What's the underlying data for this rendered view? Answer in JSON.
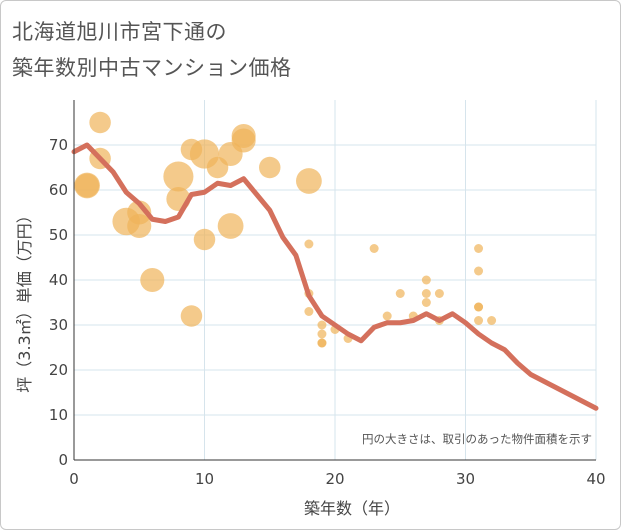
{
  "chart_data": {
    "type": "scatter",
    "title_line1": "北海道旭川市宮下通の",
    "title_line2": "築年数別中古マンション価格",
    "xlabel": "築年数（年）",
    "ylabel": "坪（3.3㎡）単価（万円）",
    "note": "円の大きさは、取引のあった物件面積を示す",
    "xlim": [
      0,
      40
    ],
    "ylim": [
      0,
      80
    ],
    "xticks": [
      0,
      10,
      20,
      30,
      40
    ],
    "yticks": [
      0,
      10,
      20,
      30,
      40,
      50,
      60,
      70
    ],
    "grid": true,
    "colors": {
      "bubble": "#f0b45a",
      "line": "#d4705c",
      "grid": "#d6e4ec",
      "axis": "#333333"
    },
    "bubbles": [
      {
        "x": 1,
        "y": 61,
        "s": 3
      },
      {
        "x": 1,
        "y": 61,
        "s": 2.8
      },
      {
        "x": 2,
        "y": 75,
        "s": 2.5
      },
      {
        "x": 2,
        "y": 67,
        "s": 2.5
      },
      {
        "x": 4,
        "y": 53,
        "s": 3.2
      },
      {
        "x": 5,
        "y": 55,
        "s": 2.8
      },
      {
        "x": 5,
        "y": 52,
        "s": 2.8
      },
      {
        "x": 6,
        "y": 40,
        "s": 2.8
      },
      {
        "x": 8,
        "y": 63,
        "s": 3.5
      },
      {
        "x": 8,
        "y": 58,
        "s": 2.8
      },
      {
        "x": 9,
        "y": 69,
        "s": 2.5
      },
      {
        "x": 9,
        "y": 32,
        "s": 2.5
      },
      {
        "x": 10,
        "y": 68,
        "s": 3.4
      },
      {
        "x": 10,
        "y": 49,
        "s": 2.5
      },
      {
        "x": 11,
        "y": 65,
        "s": 2.5
      },
      {
        "x": 12,
        "y": 68,
        "s": 2.8
      },
      {
        "x": 12,
        "y": 52,
        "s": 3.0
      },
      {
        "x": 13,
        "y": 72,
        "s": 2.8
      },
      {
        "x": 13,
        "y": 71,
        "s": 2.8
      },
      {
        "x": 15,
        "y": 65,
        "s": 2.5
      },
      {
        "x": 18,
        "y": 62,
        "s": 3.0
      },
      {
        "x": 18,
        "y": 48,
        "s": 1
      },
      {
        "x": 18,
        "y": 37,
        "s": 1
      },
      {
        "x": 18,
        "y": 33,
        "s": 1
      },
      {
        "x": 19,
        "y": 30,
        "s": 1
      },
      {
        "x": 19,
        "y": 28,
        "s": 1
      },
      {
        "x": 19,
        "y": 26,
        "s": 1
      },
      {
        "x": 19,
        "y": 26,
        "s": 1
      },
      {
        "x": 20,
        "y": 29,
        "s": 1
      },
      {
        "x": 21,
        "y": 27,
        "s": 1
      },
      {
        "x": 23,
        "y": 47,
        "s": 1
      },
      {
        "x": 24,
        "y": 32,
        "s": 1
      },
      {
        "x": 25,
        "y": 37,
        "s": 1
      },
      {
        "x": 26,
        "y": 32,
        "s": 1
      },
      {
        "x": 27,
        "y": 40,
        "s": 1
      },
      {
        "x": 27,
        "y": 37,
        "s": 1
      },
      {
        "x": 27,
        "y": 35,
        "s": 1
      },
      {
        "x": 28,
        "y": 37,
        "s": 1
      },
      {
        "x": 28,
        "y": 31,
        "s": 1
      },
      {
        "x": 31,
        "y": 47,
        "s": 1
      },
      {
        "x": 31,
        "y": 42,
        "s": 1
      },
      {
        "x": 31,
        "y": 34,
        "s": 1
      },
      {
        "x": 31,
        "y": 34,
        "s": 1
      },
      {
        "x": 31,
        "y": 31,
        "s": 1
      },
      {
        "x": 32,
        "y": 31,
        "s": 1
      }
    ],
    "trend": {
      "x": [
        0,
        1,
        2,
        3,
        4,
        5,
        6,
        7,
        8,
        9,
        10,
        11,
        12,
        13,
        14,
        15,
        16,
        17,
        18,
        19,
        20,
        21,
        22,
        23,
        24,
        25,
        26,
        27,
        28,
        29,
        30,
        31,
        32,
        33,
        34,
        35,
        36,
        37,
        38,
        39,
        40
      ],
      "y": [
        68.5,
        70,
        67,
        64,
        59.5,
        57,
        53.5,
        53,
        54,
        59,
        59.5,
        61.5,
        61,
        62.5,
        59,
        55.5,
        49.5,
        45.5,
        36.5,
        32,
        30,
        28,
        26.5,
        29.5,
        30.5,
        30.5,
        31,
        32.5,
        31,
        32.5,
        30.5,
        28,
        26,
        24.5,
        21.5,
        19,
        17.5,
        16,
        14.5,
        13,
        11.5
      ]
    }
  }
}
